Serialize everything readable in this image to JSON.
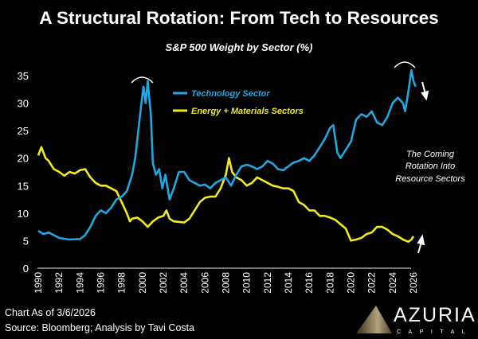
{
  "chart_data": {
    "type": "line",
    "title": "A Structural Rotation: From Tech to Resources",
    "subtitle": "S&P 500 Weight by Sector (%)",
    "xlabel": "",
    "ylabel": "",
    "ylim": [
      0,
      35
    ],
    "xlim": [
      1990,
      2026
    ],
    "yticks": [
      "0",
      "5",
      "10",
      "15",
      "20",
      "25",
      "30",
      "35"
    ],
    "xticks": [
      "1990",
      "1992",
      "1994",
      "1996",
      "1998",
      "2000",
      "2002",
      "2004",
      "2006",
      "2008",
      "2010",
      "2012",
      "2014",
      "2016",
      "2018",
      "2020",
      "2022",
      "2024",
      "2026"
    ],
    "grid": false,
    "legend_position": "top-center",
    "series": [
      {
        "name": "Technology Sector",
        "color": "#1fa8e0",
        "x": [
          1990,
          1990.5,
          1991,
          1991.5,
          1992,
          1993,
          1994,
          1994.5,
          1995,
          1995.5,
          1996,
          1996.5,
          1997,
          1997.5,
          1998,
          1998.5,
          1999,
          1999.3,
          1999.6,
          1999.9,
          2000.1,
          2000.3,
          2000.5,
          2000.8,
          2001,
          2001.3,
          2001.6,
          2001.9,
          2002.2,
          2002.6,
          2003,
          2003.5,
          2004,
          2004.5,
          2005,
          2005.5,
          2006,
          2006.5,
          2007,
          2007.5,
          2008,
          2008.5,
          2009,
          2009.5,
          2010,
          2010.5,
          2011,
          2011.5,
          2012,
          2012.5,
          2013,
          2013.5,
          2014,
          2014.5,
          2015,
          2015.5,
          2016,
          2016.5,
          2017,
          2017.5,
          2018,
          2018.3,
          2018.7,
          2019,
          2019.5,
          2020,
          2020.5,
          2021,
          2021.5,
          2022,
          2022.5,
          2023,
          2023.5,
          2024,
          2024.5,
          2025,
          2025.2,
          2025.5,
          2025.8,
          2026,
          2026.2
        ],
        "values": [
          6.8,
          6.2,
          6.5,
          6,
          5.5,
          5.2,
          5.3,
          6,
          7.5,
          9.5,
          10.5,
          10,
          11,
          12.5,
          13,
          14,
          17,
          20,
          25,
          30,
          33,
          30,
          34,
          28,
          19,
          17,
          18,
          14.5,
          17,
          12.5,
          14.5,
          17.5,
          17.5,
          16,
          15.5,
          15,
          15.2,
          14.5,
          15.5,
          16,
          16.5,
          15,
          17,
          18.5,
          18.8,
          18.5,
          18,
          18.5,
          19.5,
          19,
          18,
          17.8,
          18.5,
          19.2,
          19.5,
          20,
          19.5,
          20.5,
          22,
          23.5,
          25.5,
          26,
          21,
          20,
          21.5,
          23,
          27,
          28,
          27.5,
          28.5,
          26.5,
          26,
          27.5,
          30,
          31,
          30,
          28.5,
          32,
          36,
          34,
          33
        ]
      },
      {
        "name": "Energy + Materials Sectors",
        "color": "#f2ea1c",
        "x": [
          1990,
          1990.3,
          1990.7,
          1991,
          1991.5,
          1992,
          1992.5,
          1993,
          1993.5,
          1994,
          1994.5,
          1995,
          1995.5,
          1996,
          1996.5,
          1997,
          1997.5,
          1998,
          1998.5,
          1998.8,
          1999,
          1999.5,
          2000,
          2000.5,
          2001,
          2001.5,
          2002,
          2002.3,
          2002.6,
          2003,
          2004,
          2004.5,
          2005,
          2005.5,
          2006,
          2006.5,
          2007,
          2007.5,
          2008,
          2008.3,
          2008.6,
          2009,
          2009.5,
          2010,
          2010.5,
          2011,
          2011.5,
          2012,
          2012.5,
          2013,
          2013.5,
          2014,
          2014.5,
          2015,
          2015.5,
          2016,
          2016.5,
          2017,
          2017.5,
          2018,
          2018.5,
          2019,
          2019.5,
          2020,
          2020.5,
          2021,
          2021.5,
          2022,
          2022.5,
          2023,
          2023.5,
          2024,
          2024.5,
          2025,
          2025.5,
          2025.8,
          2026
        ],
        "values": [
          20.5,
          22,
          20,
          19.5,
          18,
          17.5,
          16.8,
          17.5,
          17.2,
          17.8,
          18,
          16.5,
          15.5,
          15,
          15,
          14.5,
          14,
          12,
          10,
          8.5,
          9,
          9.2,
          8.5,
          7.5,
          8.5,
          9.2,
          9.5,
          10.5,
          9,
          8.5,
          8.3,
          9,
          10.5,
          12,
          12.8,
          13,
          13,
          14.5,
          17,
          20,
          17.5,
          16.5,
          16,
          15,
          15.5,
          16.5,
          16,
          15.5,
          15,
          14.8,
          14.5,
          14.5,
          14,
          12,
          11.5,
          10.5,
          10.5,
          9.5,
          9.5,
          9.2,
          8.8,
          8,
          7.2,
          5,
          5.2,
          5.5,
          6.2,
          6.5,
          7.5,
          7.5,
          7,
          6.2,
          5.8,
          5.2,
          4.8,
          5.2,
          5.8
        ]
      }
    ],
    "annotations": [
      "The Coming",
      "Rotation Into",
      "Resource Sectors"
    ]
  },
  "footer": {
    "date": "Chart As of 3/6/2026",
    "source": "Source: Bloomberg; Analysis by Tavi Costa"
  },
  "logo": {
    "name": "AZURIA",
    "sub": "CAPITAL"
  }
}
